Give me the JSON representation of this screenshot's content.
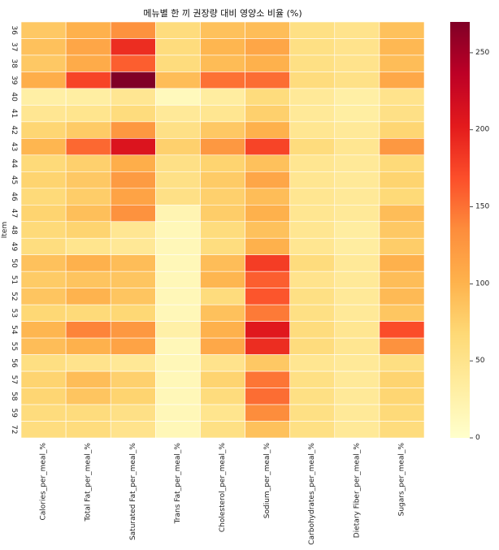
{
  "chart_data": {
    "type": "heatmap",
    "title": "메뉴별 한 끼 권장량 대비 영양소 비율 (%)",
    "ylabel": "Item",
    "xlabel": "",
    "x_categories": [
      "Calories_per_meal_%",
      "Total Fat_per_meal_%",
      "Saturated Fat_per_meal_%",
      "Trans Fat_per_meal_%",
      "Cholesterol_per_meal_%",
      "Sodium_per_meal_%",
      "Carbohydrates_per_meal_%",
      "Dietary Fiber_per_meal_%",
      "Sugars_per_meal_%"
    ],
    "y_categories": [
      "36",
      "37",
      "38",
      "39",
      "40",
      "41",
      "42",
      "43",
      "44",
      "45",
      "46",
      "47",
      "48",
      "49",
      "50",
      "51",
      "52",
      "53",
      "54",
      "55",
      "56",
      "57",
      "58",
      "59",
      "72"
    ],
    "values": [
      [
        82,
        102,
        130,
        62,
        88,
        92,
        56,
        50,
        88
      ],
      [
        88,
        112,
        190,
        62,
        98,
        112,
        56,
        50,
        96
      ],
      [
        82,
        108,
        160,
        62,
        93,
        102,
        56,
        50,
        92
      ],
      [
        105,
        175,
        270,
        92,
        150,
        152,
        62,
        54,
        110
      ],
      [
        30,
        32,
        45,
        12,
        34,
        62,
        40,
        30,
        50
      ],
      [
        45,
        48,
        62,
        40,
        46,
        75,
        40,
        32,
        55
      ],
      [
        70,
        80,
        125,
        55,
        82,
        102,
        46,
        40,
        70
      ],
      [
        98,
        155,
        210,
        75,
        125,
        175,
        62,
        46,
        125
      ],
      [
        65,
        75,
        105,
        55,
        72,
        88,
        46,
        40,
        65
      ],
      [
        72,
        82,
        122,
        55,
        80,
        112,
        46,
        40,
        72
      ],
      [
        65,
        78,
        115,
        55,
        75,
        92,
        46,
        40,
        66
      ],
      [
        72,
        90,
        130,
        20,
        78,
        102,
        46,
        40,
        92
      ],
      [
        65,
        72,
        45,
        15,
        62,
        88,
        46,
        34,
        82
      ],
      [
        60,
        48,
        42,
        15,
        60,
        102,
        46,
        34,
        78
      ],
      [
        88,
        102,
        92,
        15,
        92,
        180,
        62,
        40,
        102
      ],
      [
        80,
        86,
        85,
        15,
        98,
        160,
        50,
        40,
        92
      ],
      [
        85,
        100,
        85,
        15,
        62,
        165,
        56,
        40,
        94
      ],
      [
        68,
        65,
        68,
        15,
        88,
        145,
        56,
        40,
        84
      ],
      [
        98,
        140,
        125,
        28,
        102,
        205,
        62,
        46,
        170
      ],
      [
        92,
        102,
        115,
        15,
        110,
        190,
        62,
        46,
        130
      ],
      [
        58,
        50,
        42,
        15,
        50,
        82,
        46,
        40,
        58
      ],
      [
        72,
        92,
        75,
        15,
        72,
        148,
        56,
        40,
        72
      ],
      [
        70,
        85,
        72,
        15,
        62,
        152,
        56,
        40,
        70
      ],
      [
        62,
        62,
        55,
        15,
        48,
        135,
        56,
        40,
        65
      ],
      [
        60,
        62,
        50,
        15,
        56,
        88,
        56,
        40,
        62
      ]
    ],
    "vmin": 0,
    "vmax": 270,
    "colorbar_ticks": [
      0,
      50,
      100,
      150,
      200,
      250
    ],
    "colormap": "YlOrRd",
    "cell_border_color": "#ffffff",
    "grid": false,
    "legend": "colorbar-right"
  }
}
